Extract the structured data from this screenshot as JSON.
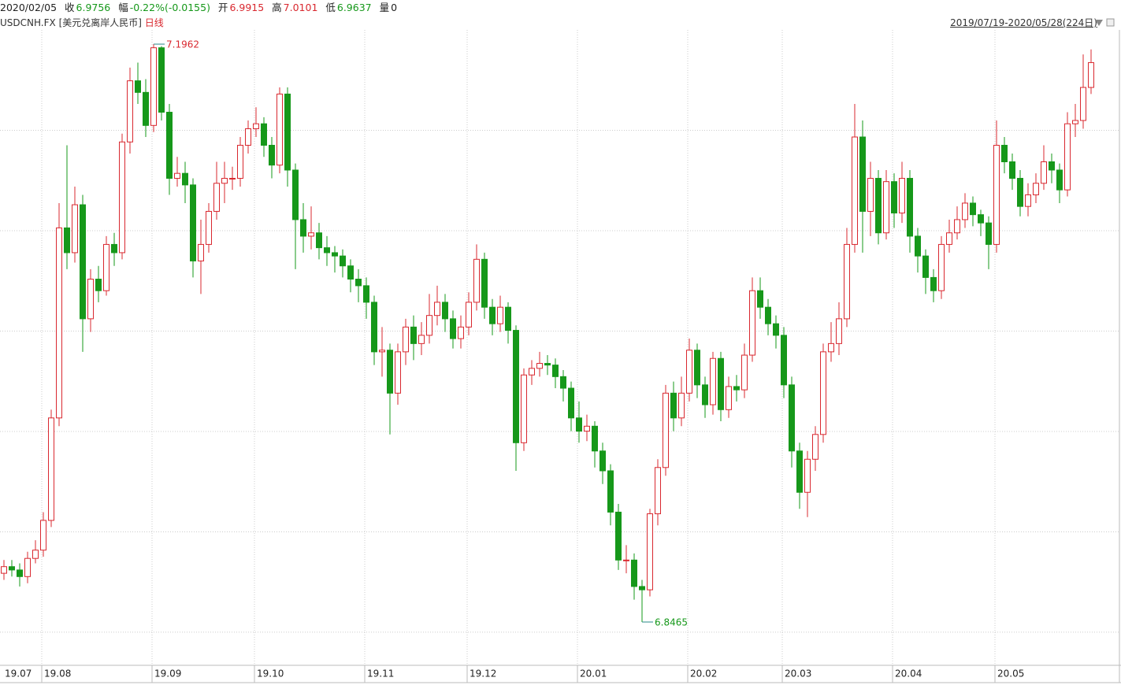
{
  "header": {
    "date": "2020/02/05",
    "close_label": "收",
    "close": 6.9756,
    "change_label": "幅",
    "change": "-0.22%(-0.0155)",
    "open_label": "开",
    "open": 6.9915,
    "high_label": "高",
    "high": 7.0101,
    "low_label": "低",
    "low": 6.9637,
    "volume_label": "量",
    "volume": 0,
    "symbol": "USDCNH.FX",
    "name": "[美元兑离岸人民币]",
    "period": "日线",
    "range": "2019/07/19-2020/05/28(224日)"
  },
  "chart_data": {
    "type": "candlestick",
    "up_color": "#d9282f",
    "down_color": "#16981a",
    "grid": true,
    "ylim": [
      6.8203,
      7.2048
    ],
    "categories": [
      "19.07",
      null,
      null,
      null,
      null,
      "19.08",
      null,
      null,
      null,
      null,
      null,
      null,
      null,
      null,
      null,
      null,
      null,
      null,
      null,
      "19.09",
      null,
      null,
      null,
      null,
      null,
      null,
      null,
      null,
      null,
      null,
      null,
      null,
      "19.10",
      null,
      null,
      null,
      null,
      null,
      null,
      null,
      null,
      null,
      null,
      null,
      null,
      null,
      "19.11",
      null,
      null,
      null,
      null,
      null,
      null,
      null,
      null,
      null,
      null,
      null,
      null,
      "19.12",
      null,
      null,
      null,
      null,
      null,
      null,
      null,
      null,
      null,
      null,
      null,
      null,
      null,
      "20.01",
      null,
      null,
      null,
      null,
      null,
      null,
      null,
      null,
      null,
      null,
      null,
      null,
      null,
      "20.02",
      null,
      null,
      null,
      null,
      null,
      null,
      null,
      null,
      null,
      null,
      null,
      "20.03",
      null,
      null,
      null,
      null,
      null,
      null,
      null,
      null,
      null,
      null,
      null,
      null,
      null,
      "20.04",
      null,
      null,
      null,
      null,
      null,
      null,
      null,
      null,
      null,
      null,
      null,
      null,
      "20.05",
      null,
      null,
      null,
      null,
      null,
      null,
      null,
      null,
      null,
      null,
      null,
      null
    ],
    "open": [
      6.876,
      6.88,
      6.878,
      6.874,
      6.885,
      6.89,
      6.908,
      6.97,
      7.085,
      7.07,
      7.099,
      7.03,
      7.054,
      7.047,
      7.075,
      7.07,
      7.137,
      7.174,
      7.167,
      7.147,
      7.194,
      7.155,
      7.115,
      7.118,
      7.111,
      7.065,
      7.075,
      7.095,
      7.112,
      7.115,
      7.115,
      7.135,
      7.145,
      7.148,
      7.135,
      7.123,
      7.166,
      7.12,
      7.09,
      7.08,
      7.082,
      7.073,
      7.07,
      7.068,
      7.062,
      7.054,
      7.05,
      7.04,
      7.01,
      7.011,
      6.985,
      7.01,
      7.025,
      7.015,
      7.02,
      7.032,
      7.04,
      7.03,
      7.018,
      7.025,
      7.04,
      7.066,
      7.037,
      7.027,
      7.037,
      7.023,
      6.955,
      6.996,
      7.0,
      7.003,
      7.002,
      6.995,
      6.988,
      6.97,
      6.962,
      6.965,
      6.95,
      6.938,
      6.913,
      6.884,
      6.884,
      6.868,
      6.866,
      6.912,
      6.94,
      6.985,
      6.97,
      6.985,
      7.011,
      6.99,
      6.978,
      7.006,
      6.975,
      6.989,
      6.987,
      7.008,
      7.047,
      7.037,
      7.027,
      7.02,
      6.99,
      6.95,
      6.925,
      6.945,
      6.96,
      7.01,
      7.015,
      7.03,
      7.075,
      7.14,
      7.095,
      7.115,
      7.082,
      7.113,
      7.094,
      7.115,
      7.08,
      7.068,
      7.055,
      7.047,
      7.075,
      7.082,
      7.09,
      7.1,
      7.093,
      7.088,
      7.075,
      7.135,
      7.125,
      7.115,
      7.098,
      7.105,
      7.112,
      7.125,
      7.12,
      7.108,
      7.148,
      7.15,
      7.17
    ],
    "close": [
      6.88,
      6.878,
      6.874,
      6.885,
      6.89,
      6.908,
      6.97,
      7.085,
      7.07,
      7.099,
      7.03,
      7.054,
      7.047,
      7.075,
      7.07,
      7.137,
      7.174,
      7.167,
      7.147,
      7.194,
      7.155,
      7.115,
      7.118,
      7.111,
      7.065,
      7.075,
      7.095,
      7.112,
      7.115,
      7.115,
      7.135,
      7.145,
      7.148,
      7.135,
      7.123,
      7.166,
      7.12,
      7.09,
      7.08,
      7.082,
      7.073,
      7.07,
      7.068,
      7.062,
      7.054,
      7.05,
      7.04,
      7.01,
      7.011,
      6.985,
      7.01,
      7.025,
      7.015,
      7.02,
      7.032,
      7.04,
      7.03,
      7.018,
      7.025,
      7.04,
      7.066,
      7.037,
      7.027,
      7.037,
      7.023,
      6.955,
      6.996,
      7.0,
      7.003,
      7.002,
      6.995,
      6.988,
      6.97,
      6.962,
      6.965,
      6.95,
      6.938,
      6.913,
      6.884,
      6.884,
      6.868,
      6.866,
      6.912,
      6.94,
      6.985,
      6.97,
      6.985,
      7.011,
      6.99,
      6.978,
      7.006,
      6.975,
      6.989,
      6.987,
      7.008,
      7.047,
      7.037,
      7.027,
      7.02,
      6.99,
      6.95,
      6.925,
      6.945,
      6.96,
      7.01,
      7.015,
      7.03,
      7.075,
      7.14,
      7.095,
      7.115,
      7.082,
      7.113,
      7.094,
      7.115,
      7.08,
      7.068,
      7.055,
      7.047,
      7.075,
      7.082,
      7.09,
      7.1,
      7.093,
      7.088,
      7.075,
      7.135,
      7.125,
      7.115,
      7.098,
      7.105,
      7.112,
      7.125,
      7.12,
      7.108,
      7.148,
      7.15,
      7.17,
      7.185
    ],
    "high": [
      6.884,
      6.884,
      6.882,
      6.889,
      6.896,
      6.913,
      6.975,
      7.1,
      7.135,
      7.11,
      7.105,
      7.06,
      7.062,
      7.08,
      7.082,
      7.142,
      7.182,
      7.185,
      7.175,
      7.1962,
      7.195,
      7.16,
      7.128,
      7.125,
      7.115,
      7.09,
      7.1,
      7.125,
      7.125,
      7.122,
      7.14,
      7.15,
      7.158,
      7.152,
      7.14,
      7.17,
      7.17,
      7.124,
      7.1,
      7.098,
      7.088,
      7.08,
      7.074,
      7.072,
      7.066,
      7.06,
      7.055,
      7.044,
      7.025,
      7.015,
      7.015,
      7.03,
      7.032,
      7.028,
      7.045,
      7.05,
      7.045,
      7.035,
      7.032,
      7.046,
      7.075,
      7.07,
      7.042,
      7.044,
      7.04,
      7.026,
      7.0,
      7.005,
      7.01,
      7.008,
      7.006,
      6.999,
      6.992,
      6.98,
      6.972,
      6.968,
      6.955,
      6.942,
      6.918,
      6.893,
      6.888,
      6.872,
      6.915,
      6.945,
      6.99,
      6.992,
      6.995,
      7.018,
      7.015,
      6.995,
      7.01,
      7.01,
      6.995,
      6.996,
      7.015,
      7.055,
      7.055,
      7.042,
      7.032,
      7.025,
      6.995,
      6.955,
      6.95,
      6.965,
      7.015,
      7.028,
      7.04,
      7.085,
      7.16,
      7.15,
      7.125,
      7.12,
      7.12,
      7.118,
      7.125,
      7.12,
      7.085,
      7.072,
      7.06,
      7.08,
      7.09,
      7.098,
      7.106,
      7.104,
      7.096,
      7.092,
      7.15,
      7.14,
      7.13,
      7.12,
      7.112,
      7.118,
      7.135,
      7.13,
      7.124,
      7.155,
      7.16,
      7.19,
      7.193
    ],
    "low": [
      6.872,
      6.874,
      6.868,
      6.87,
      6.882,
      6.886,
      6.904,
      6.965,
      7.06,
      7.064,
      7.01,
      7.022,
      7.04,
      7.044,
      7.062,
      7.066,
      7.13,
      7.16,
      7.14,
      7.143,
      7.15,
      7.105,
      7.11,
      7.1,
      7.055,
      7.045,
      7.07,
      7.09,
      7.1,
      7.108,
      7.11,
      7.13,
      7.14,
      7.128,
      7.115,
      7.118,
      7.11,
      7.06,
      7.07,
      7.072,
      7.066,
      7.062,
      7.058,
      7.055,
      7.046,
      7.04,
      7.03,
      7.002,
      6.995,
      6.96,
      6.978,
      7.002,
      7.005,
      7.008,
      7.015,
      7.026,
      7.022,
      7.012,
      7.012,
      7.02,
      7.035,
      7.03,
      7.02,
      7.022,
      7.015,
      6.938,
      6.95,
      6.99,
      6.995,
      6.996,
      6.988,
      6.98,
      6.962,
      6.955,
      6.956,
      6.94,
      6.93,
      6.905,
      6.878,
      6.876,
      6.86,
      6.8465,
      6.862,
      6.905,
      6.935,
      6.962,
      6.965,
      6.98,
      6.982,
      6.97,
      6.972,
      6.968,
      6.97,
      6.98,
      6.982,
      7.004,
      7.03,
      7.02,
      7.012,
      6.982,
      6.94,
      6.915,
      6.91,
      6.938,
      6.955,
      7.004,
      7.008,
      7.025,
      7.07,
      7.07,
      7.08,
      7.075,
      7.078,
      7.085,
      7.088,
      7.07,
      7.058,
      7.045,
      7.04,
      7.042,
      7.07,
      7.078,
      7.085,
      7.086,
      7.08,
      7.06,
      7.07,
      7.118,
      7.108,
      7.092,
      7.092,
      7.1,
      7.108,
      7.112,
      7.1,
      7.104,
      7.14,
      7.145,
      7.166
    ]
  }
}
